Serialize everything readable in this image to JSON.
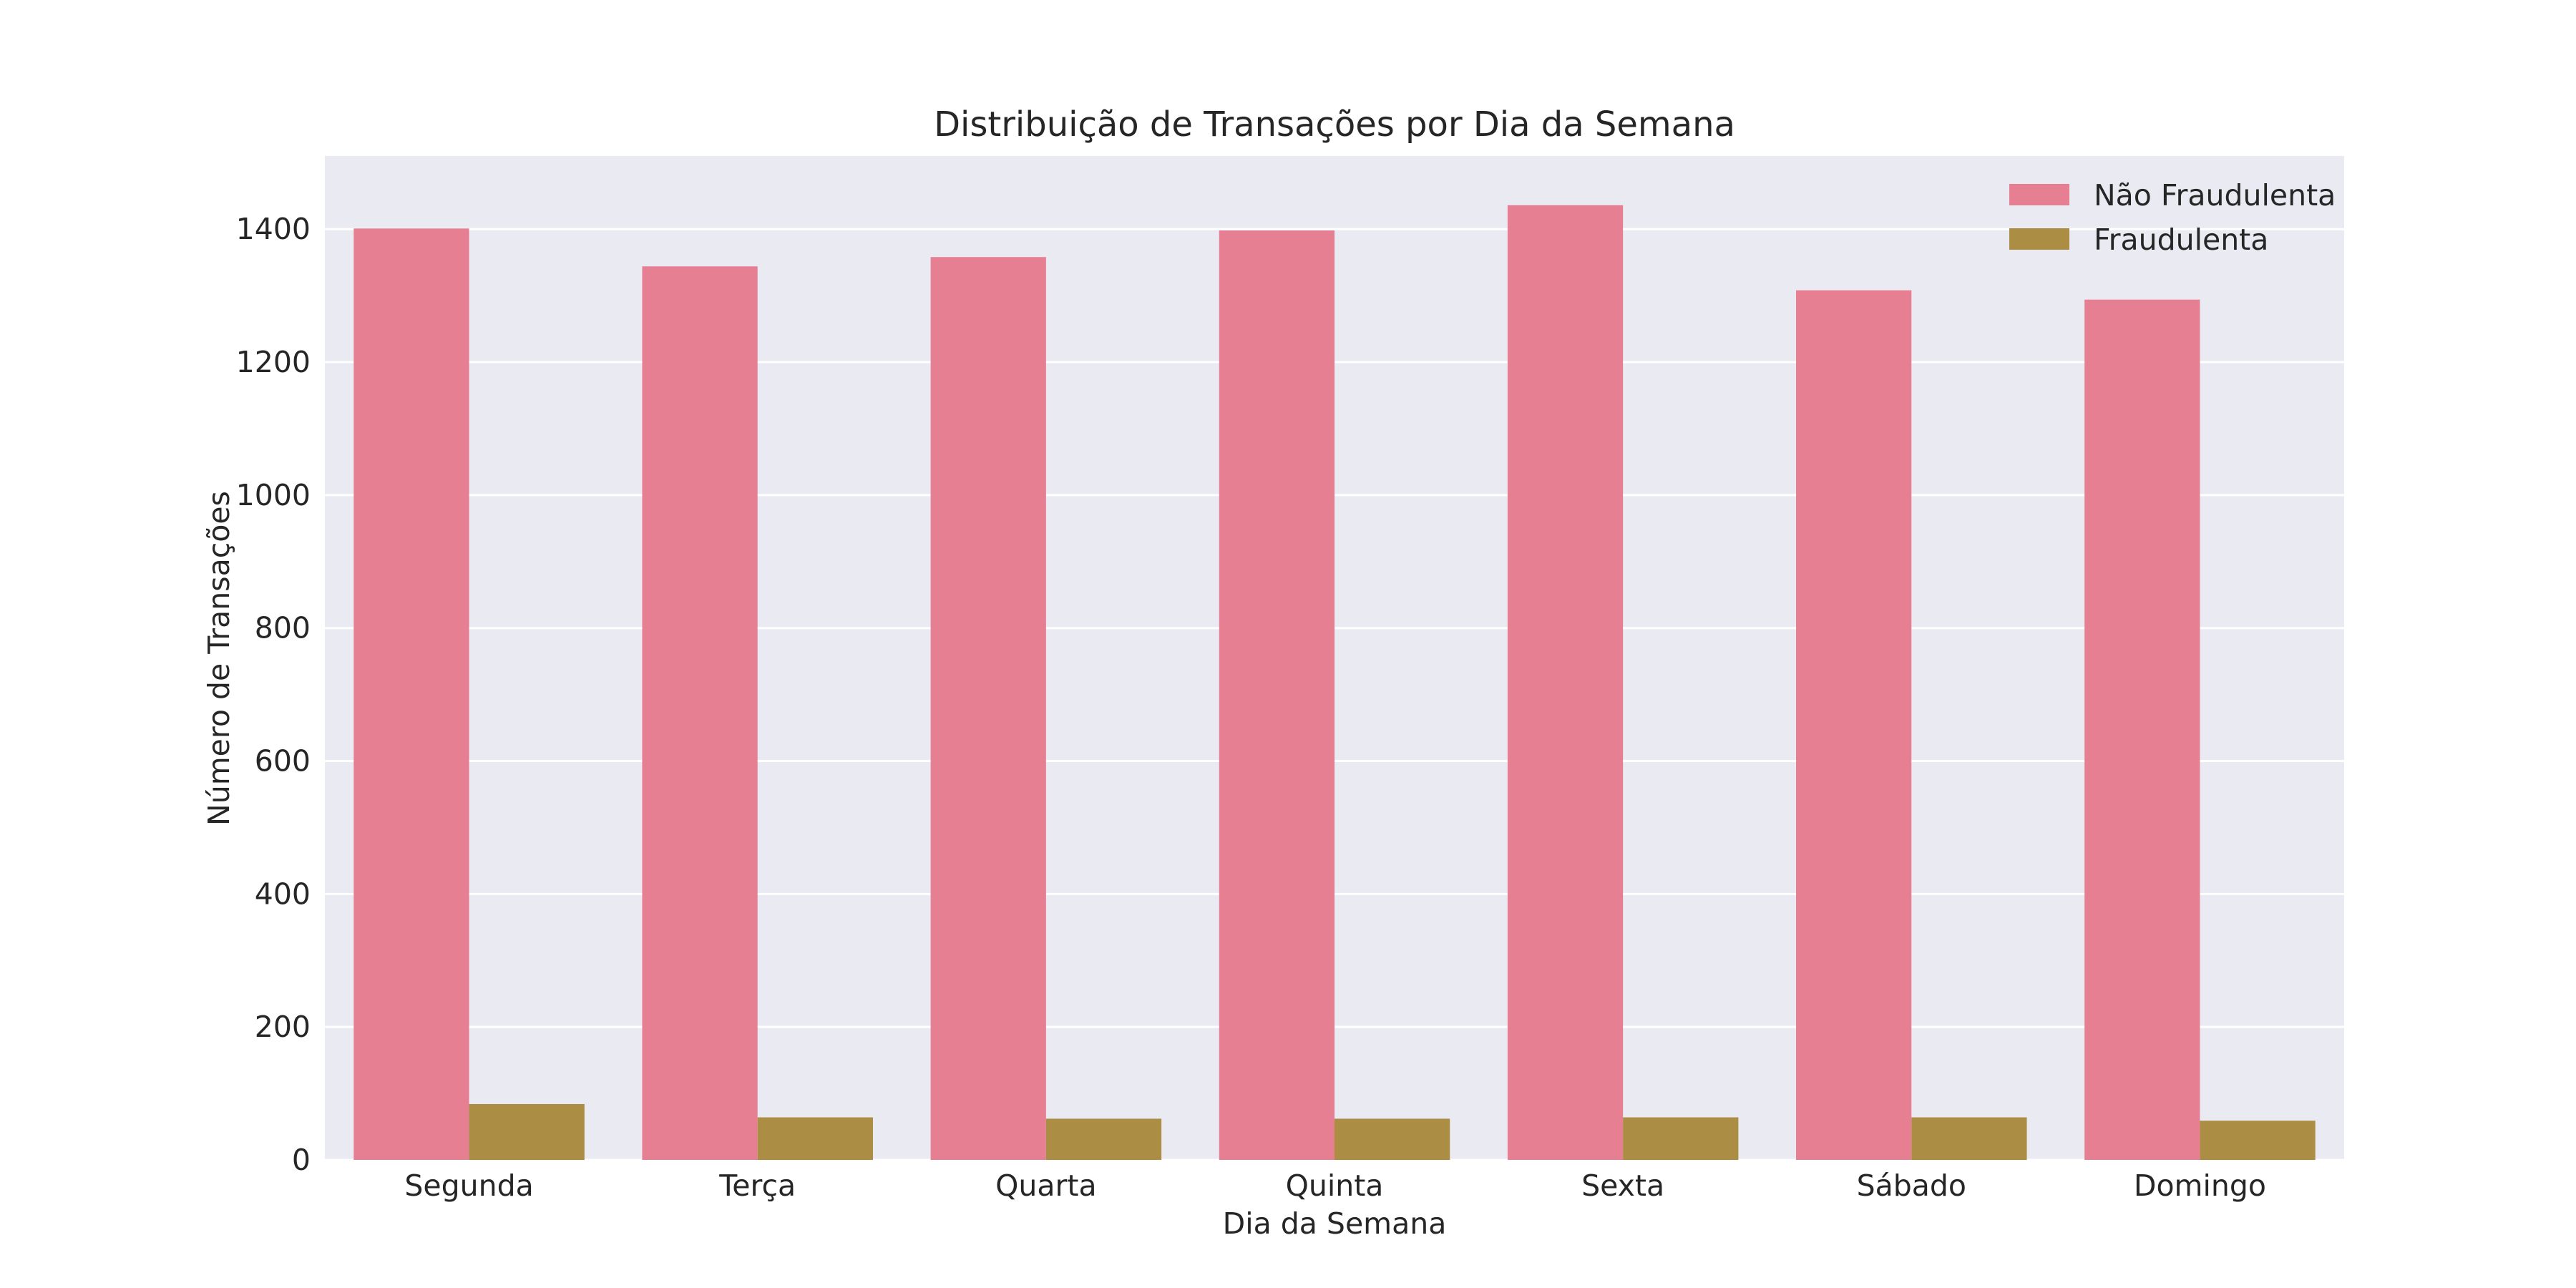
{
  "chart_data": {
    "type": "bar",
    "title": "Distribuição de Transações por Dia da Semana",
    "xlabel": "Dia da Semana",
    "ylabel": "Número de Transações",
    "categories": [
      "Segunda",
      "Terça",
      "Quarta",
      "Quinta",
      "Sexta",
      "Sábado",
      "Domingo"
    ],
    "series": [
      {
        "name": "Não Fraudulenta",
        "color": "#e77f92",
        "values": [
          1401,
          1344,
          1358,
          1398,
          1436,
          1308,
          1294
        ]
      },
      {
        "name": "Fraudulenta",
        "color": "#ab8e43",
        "values": [
          84,
          64,
          62,
          62,
          64,
          64,
          59
        ]
      }
    ],
    "ylim": [
      0,
      1510
    ],
    "yticks": [
      0,
      200,
      400,
      600,
      800,
      1000,
      1200,
      1400
    ],
    "grid": true,
    "legend_position": "top-right",
    "background_color": "#eaeaf2"
  }
}
